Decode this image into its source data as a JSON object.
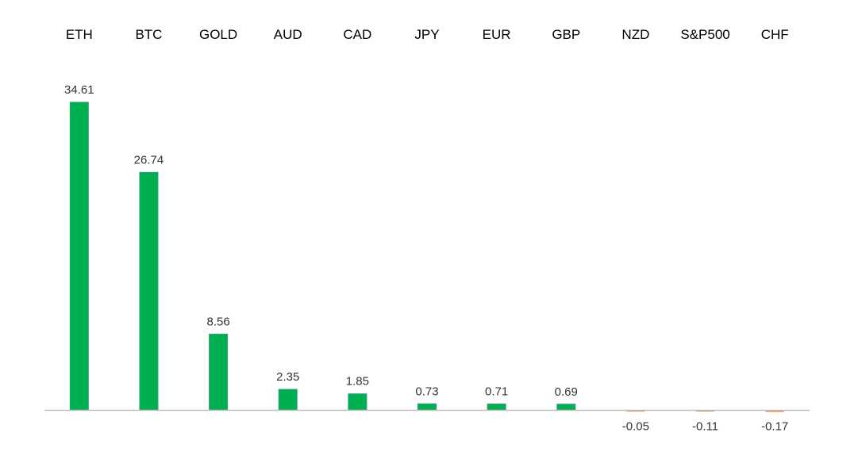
{
  "chart_data": {
    "type": "bar",
    "title": "",
    "xlabel": "",
    "ylabel": "",
    "categories": [
      "ETH",
      "BTC",
      "GOLD",
      "AUD",
      "CAD",
      "JPY",
      "EUR",
      "GBP",
      "NZD",
      "S&P500",
      "CHF"
    ],
    "values": [
      34.61,
      26.74,
      8.56,
      2.35,
      1.85,
      0.73,
      0.71,
      0.69,
      -0.05,
      -0.11,
      -0.17
    ],
    "value_labels": [
      "34.61",
      "26.74",
      "8.56",
      "2.35",
      "1.85",
      "0.73",
      "0.71",
      "0.69",
      "-0.05",
      "-0.11",
      "-0.17"
    ],
    "ylim": [
      -6,
      40
    ],
    "category_axis_position": "top",
    "grid": false,
    "legend": "none",
    "colors": {
      "positive": "#00b050",
      "positive_edge": "#2e9e7a",
      "negative": "#ed7d31",
      "axis": "#bfbfbf"
    }
  }
}
